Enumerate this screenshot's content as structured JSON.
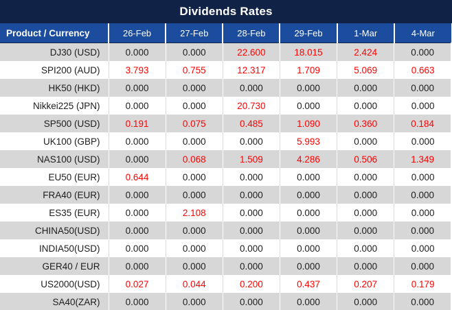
{
  "title": "Dividends Rates",
  "colors": {
    "title_bg": "#102347",
    "header_bg": "#1b4c9e",
    "row_alt_bg": "#d7d7d7",
    "row_bg": "#ffffff",
    "value_red": "#ff0000",
    "text_dark": "#1d1d1d",
    "header_text": "#ffffff"
  },
  "chart_data": {
    "type": "table",
    "title": "Dividends Rates",
    "columns": [
      "Product / Currency",
      "26-Feb",
      "27-Feb",
      "28-Feb",
      "29-Feb",
      "1-Mar",
      "4-Mar"
    ],
    "rows": [
      {
        "product": "DJ30 (USD)",
        "values": [
          "0.000",
          "0.000",
          "22.600",
          "18.015",
          "2.424",
          "0.000"
        ],
        "red": [
          false,
          false,
          true,
          true,
          true,
          false
        ]
      },
      {
        "product": "SPI200 (AUD)",
        "values": [
          "3.793",
          "0.755",
          "12.317",
          "1.709",
          "5.069",
          "0.663"
        ],
        "red": [
          true,
          true,
          true,
          true,
          true,
          true
        ]
      },
      {
        "product": "HK50 (HKD)",
        "values": [
          "0.000",
          "0.000",
          "0.000",
          "0.000",
          "0.000",
          "0.000"
        ],
        "red": [
          false,
          false,
          false,
          false,
          false,
          false
        ]
      },
      {
        "product": "Nikkei225 (JPN)",
        "values": [
          "0.000",
          "0.000",
          "20.730",
          "0.000",
          "0.000",
          "0.000"
        ],
        "red": [
          false,
          false,
          true,
          false,
          false,
          false
        ]
      },
      {
        "product": "SP500 (USD)",
        "values": [
          "0.191",
          "0.075",
          "0.485",
          "1.090",
          "0.360",
          "0.184"
        ],
        "red": [
          true,
          true,
          true,
          true,
          true,
          true
        ]
      },
      {
        "product": "UK100 (GBP)",
        "values": [
          "0.000",
          "0.000",
          "0.000",
          "5.993",
          "0.000",
          "0.000"
        ],
        "red": [
          false,
          false,
          false,
          true,
          false,
          false
        ]
      },
      {
        "product": "NAS100 (USD)",
        "values": [
          "0.000",
          "0.068",
          "1.509",
          "4.286",
          "0.506",
          "1.349"
        ],
        "red": [
          false,
          true,
          true,
          true,
          true,
          true
        ]
      },
      {
        "product": "EU50 (EUR)",
        "values": [
          "0.644",
          "0.000",
          "0.000",
          "0.000",
          "0.000",
          "0.000"
        ],
        "red": [
          true,
          false,
          false,
          false,
          false,
          false
        ]
      },
      {
        "product": "FRA40 (EUR)",
        "values": [
          "0.000",
          "0.000",
          "0.000",
          "0.000",
          "0.000",
          "0.000"
        ],
        "red": [
          false,
          false,
          false,
          false,
          false,
          false
        ]
      },
      {
        "product": "ES35 (EUR)",
        "values": [
          "0.000",
          "2.108",
          "0.000",
          "0.000",
          "0.000",
          "0.000"
        ],
        "red": [
          false,
          true,
          false,
          false,
          false,
          false
        ]
      },
      {
        "product": "CHINA50(USD)",
        "values": [
          "0.000",
          "0.000",
          "0.000",
          "0.000",
          "0.000",
          "0.000"
        ],
        "red": [
          false,
          false,
          false,
          false,
          false,
          false
        ]
      },
      {
        "product": "INDIA50(USD)",
        "values": [
          "0.000",
          "0.000",
          "0.000",
          "0.000",
          "0.000",
          "0.000"
        ],
        "red": [
          false,
          false,
          false,
          false,
          false,
          false
        ]
      },
      {
        "product": "GER40 / EUR",
        "values": [
          "0.000",
          "0.000",
          "0.000",
          "0.000",
          "0.000",
          "0.000"
        ],
        "red": [
          false,
          false,
          false,
          false,
          false,
          false
        ]
      },
      {
        "product": "US2000(USD)",
        "values": [
          "0.027",
          "0.044",
          "0.200",
          "0.437",
          "0.207",
          "0.179"
        ],
        "red": [
          true,
          true,
          true,
          true,
          true,
          true
        ]
      },
      {
        "product": "SA40(ZAR)",
        "values": [
          "0.000",
          "0.000",
          "0.000",
          "0.000",
          "0.000",
          "0.000"
        ],
        "red": [
          false,
          false,
          false,
          false,
          false,
          false
        ]
      }
    ]
  }
}
